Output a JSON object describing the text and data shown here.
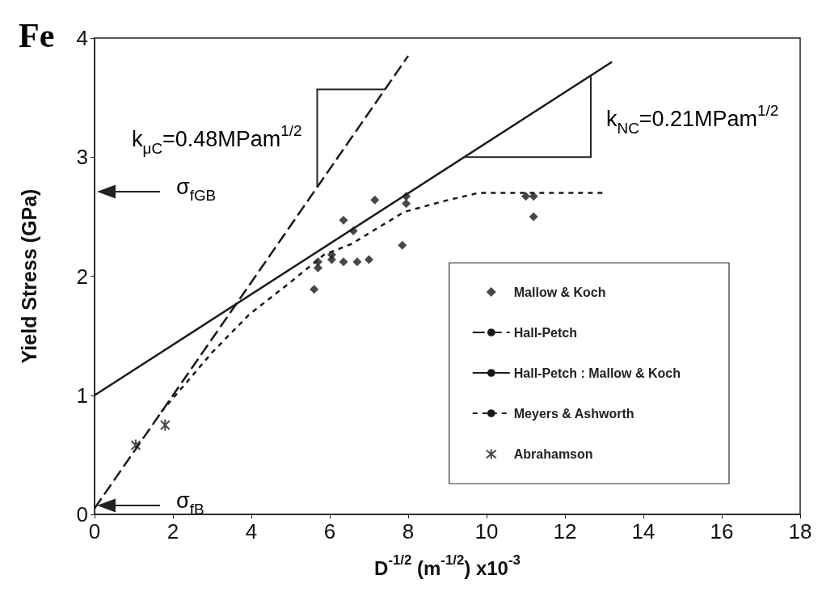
{
  "chart_data": {
    "type": "scatter",
    "title": "Fe",
    "xlabel": "D$^{-1/2}$ (m$^{-1/2}$) x10$^{-3}$",
    "ylabel": "Yield Stress (GPa)",
    "xlim": [
      0,
      18
    ],
    "xticks": [
      0,
      2,
      4,
      6,
      8,
      10,
      12,
      14,
      16,
      18
    ],
    "ylim": [
      0,
      4
    ],
    "yticks": [
      0,
      1,
      2,
      3,
      4
    ],
    "grid": false,
    "legend": "bottom right",
    "series": [
      {
        "name": "Mallow & Koch",
        "marker": "diamond",
        "color": "#1a1a1a",
        "x": [
          5.6,
          5.7,
          5.7,
          6.05,
          6.05,
          6.35,
          6.35,
          6.6,
          6.7,
          7.0,
          7.15,
          7.85,
          7.95,
          7.95,
          11.0,
          11.2,
          11.2
        ],
        "values": [
          1.89,
          2.07,
          2.12,
          2.14,
          2.18,
          2.12,
          2.47,
          2.38,
          2.12,
          2.14,
          2.64,
          2.26,
          2.61,
          2.67,
          2.67,
          2.67,
          2.5
        ]
      },
      {
        "name": "Hall-Petch",
        "type": "line",
        "line_style": "dashed",
        "marker": "none",
        "color": "#1a1a1a",
        "x": [
          0,
          8
        ],
        "values": [
          0.05,
          3.85
        ]
      },
      {
        "name": "Hall-Petch : Mallow & Koch",
        "type": "line",
        "line_style": "solid",
        "marker": "none",
        "color": "#1a1a1a",
        "x": [
          0,
          13.2
        ],
        "values": [
          1,
          3.8
        ]
      },
      {
        "name": "Meyers & Ashworth",
        "type": "line",
        "line_style": "dotted",
        "marker": "none",
        "color": "#1a1a1a",
        "x": [
          1.7,
          2.3,
          3.0,
          3.95,
          5.0,
          5.85,
          6.55,
          7.9,
          8.9,
          9.8,
          13.0
        ],
        "values": [
          0.86,
          1.09,
          1.36,
          1.68,
          1.95,
          2.18,
          2.27,
          2.54,
          2.63,
          2.7,
          2.7
        ]
      },
      {
        "name": "Abrahamson",
        "marker": "cross",
        "color": "#1a1a1a",
        "x": [
          1.05,
          1.8
        ],
        "values": [
          0.58,
          0.75
        ]
      }
    ],
    "annotations": [
      "k$_{μC}$=0.48MPam$^{1/2}$",
      "k$_{NC}$=0.21MPam$^{1/2}$",
      "σ$_{fGB}$",
      "σ$_{fB}$"
    ]
  }
}
